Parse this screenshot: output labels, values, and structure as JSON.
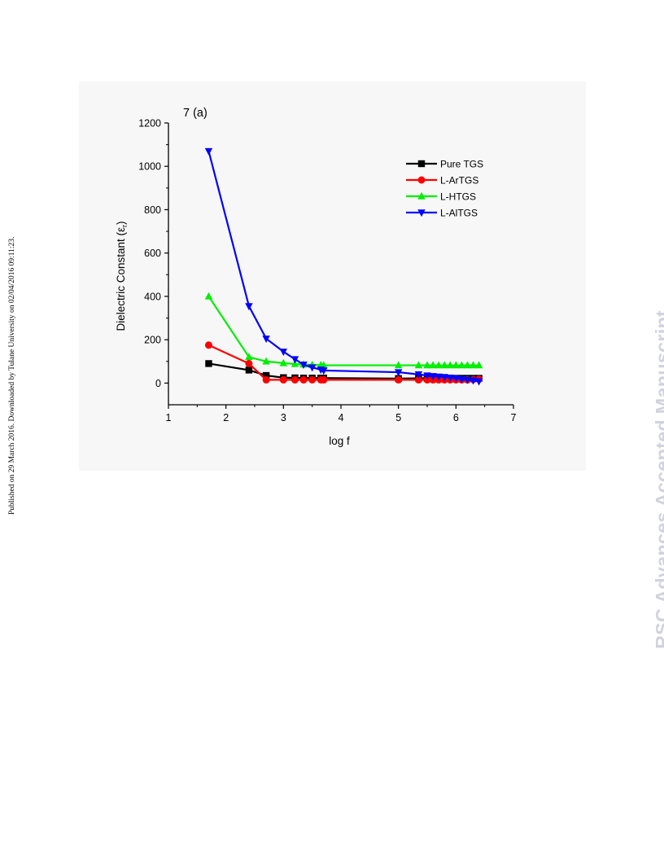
{
  "side_note": "Published on 29 March 2016. Downloaded by Tulane University on 02/04/2016 09:11:23.",
  "watermark": "RSC Advances Accepted Manuscript",
  "chart_data": {
    "type": "line",
    "panel_label": "7 (a)",
    "xlabel": "log f",
    "ylabel": "Dielectric Constant (ε",
    "ylabel_sub": "r",
    "ylabel_close": ")",
    "xlim": [
      1,
      7
    ],
    "ylim": [
      -100,
      1200
    ],
    "xticks": [
      1,
      2,
      3,
      4,
      5,
      6,
      7
    ],
    "yticks": [
      0,
      200,
      400,
      600,
      800,
      1000,
      1200
    ],
    "grid": false,
    "legend_position": "top-right",
    "series": [
      {
        "name": "Pure TGS",
        "color": "#000000",
        "marker": "square",
        "x": [
          1.7,
          2.4,
          2.7,
          3.0,
          3.2,
          3.35,
          3.5,
          3.65,
          3.7,
          5.0,
          5.35,
          5.5,
          5.6,
          5.7,
          5.8,
          5.9,
          6.0,
          6.1,
          6.2,
          6.3,
          6.4
        ],
        "y": [
          90,
          60,
          35,
          25,
          24,
          23,
          23,
          23,
          23,
          21,
          22,
          22,
          22,
          22,
          22,
          22,
          22,
          22,
          22,
          22,
          22
        ]
      },
      {
        "name": "L-ArTGS",
        "color": "#ff0000",
        "marker": "circle",
        "x": [
          1.7,
          2.4,
          2.7,
          3.0,
          3.2,
          3.35,
          3.5,
          3.65,
          3.7,
          5.0,
          5.35,
          5.5,
          5.6,
          5.7,
          5.8,
          5.9,
          6.0,
          6.1,
          6.2,
          6.3,
          6.4
        ],
        "y": [
          175,
          90,
          15,
          15,
          15,
          15,
          15,
          15,
          15,
          15,
          15,
          15,
          15,
          15,
          15,
          15,
          15,
          15,
          15,
          16,
          18
        ]
      },
      {
        "name": "L-HTGS",
        "color": "#00ee00",
        "marker": "triangle-up",
        "x": [
          1.7,
          2.4,
          2.7,
          3.0,
          3.2,
          3.35,
          3.5,
          3.65,
          3.7,
          5.0,
          5.35,
          5.5,
          5.6,
          5.7,
          5.8,
          5.9,
          6.0,
          6.1,
          6.2,
          6.3,
          6.4
        ],
        "y": [
          400,
          120,
          100,
          92,
          88,
          86,
          84,
          83,
          82,
          82,
          82,
          82,
          82,
          82,
          82,
          82,
          82,
          82,
          82,
          82,
          82
        ]
      },
      {
        "name": "L-AlTGS",
        "color": "#0000ff",
        "marker": "triangle-down",
        "x": [
          1.7,
          2.4,
          2.7,
          3.0,
          3.2,
          3.35,
          3.5,
          3.65,
          3.7,
          5.0,
          5.35,
          5.5,
          5.6,
          5.7,
          5.8,
          5.9,
          6.0,
          6.1,
          6.2,
          6.3,
          6.4
        ],
        "y": [
          1070,
          355,
          205,
          145,
          110,
          85,
          72,
          62,
          58,
          50,
          40,
          35,
          32,
          30,
          28,
          25,
          22,
          18,
          15,
          12,
          8
        ]
      }
    ]
  }
}
